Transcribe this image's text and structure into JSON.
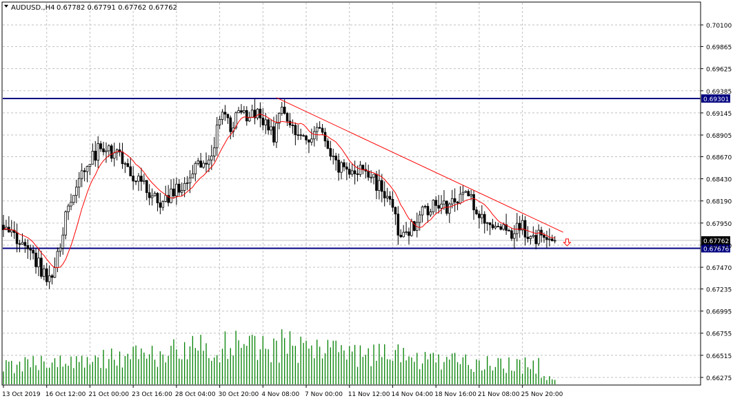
{
  "header": {
    "symbol": "AUDUSD.,H4",
    "ohlc": "0.67782 0.67791 0.67762 0.67762",
    "menu_icon": "triangle-down-icon"
  },
  "colors": {
    "background": "#ffffff",
    "grid": "#c0c0c0",
    "frame": "#000000",
    "candle": "#000000",
    "moving_average": "#ff0000",
    "trendline": "#ff0000",
    "support_resistance": "#000080",
    "volume": "#008000",
    "arrow": "#ff0000",
    "price_label_bg": "#000080",
    "current_price_bg": "#000000"
  },
  "chart_data": {
    "type": "candlestick",
    "symbol": "AUDUSD.",
    "timeframe": "H4",
    "grid": true,
    "ylim": [
      0.662,
      0.7034
    ],
    "y_ticks": [
      "0.70100",
      "0.69865",
      "0.69625",
      "0.69385",
      "0.69145",
      "0.68905",
      "0.68670",
      "0.68430",
      "0.68190",
      "0.67950",
      "0.67710",
      "0.67470",
      "0.67235",
      "0.66995",
      "0.66755",
      "0.66515",
      "0.66275"
    ],
    "x_ticks": [
      "13 Oct 2019",
      "16 Oct 12:00",
      "21 Oct 00:00",
      "23 Oct 16:00",
      "28 Oct 04:00",
      "30 Oct 20:00",
      "4 Nov 08:00",
      "7 Nov 00:00",
      "11 Nov 12:00",
      "14 Nov 04:00",
      "18 Nov 16:00",
      "21 Nov 08:00",
      "25 Nov 20:00"
    ],
    "current_price_label": "0.67762",
    "horizontal_lines": [
      {
        "price": 0.69301,
        "label": "0.69301"
      },
      {
        "price": 0.67676,
        "label": "0.67676"
      }
    ],
    "trendline": {
      "from": {
        "bar": 101,
        "price": 0.6931
      },
      "to": {
        "bar": 204,
        "price": 0.6785
      }
    },
    "ma_period": 10,
    "signal_arrow": {
      "bar": 207,
      "price": 0.6774,
      "direction": "down"
    },
    "close_anchors": [
      [
        0,
        0.679
      ],
      [
        8,
        0.6774
      ],
      [
        13,
        0.675
      ],
      [
        17,
        0.673
      ],
      [
        20,
        0.6762
      ],
      [
        23,
        0.68
      ],
      [
        27,
        0.683
      ],
      [
        32,
        0.6865
      ],
      [
        36,
        0.6877
      ],
      [
        42,
        0.687
      ],
      [
        47,
        0.685
      ],
      [
        52,
        0.684
      ],
      [
        57,
        0.6815
      ],
      [
        62,
        0.6825
      ],
      [
        67,
        0.684
      ],
      [
        72,
        0.686
      ],
      [
        77,
        0.687
      ],
      [
        81,
        0.692
      ],
      [
        84,
        0.69
      ],
      [
        87,
        0.691
      ],
      [
        92,
        0.6915
      ],
      [
        97,
        0.6905
      ],
      [
        100,
        0.689
      ],
      [
        102,
        0.692
      ],
      [
        107,
        0.6895
      ],
      [
        112,
        0.688
      ],
      [
        116,
        0.6905
      ],
      [
        119,
        0.688
      ],
      [
        122,
        0.686
      ],
      [
        127,
        0.6855
      ],
      [
        132,
        0.685
      ],
      [
        137,
        0.684
      ],
      [
        140,
        0.6835
      ],
      [
        143,
        0.682
      ],
      [
        147,
        0.6775
      ],
      [
        150,
        0.6785
      ],
      [
        155,
        0.6805
      ],
      [
        160,
        0.6815
      ],
      [
        164,
        0.681
      ],
      [
        167,
        0.682
      ],
      [
        170,
        0.683
      ],
      [
        174,
        0.6815
      ],
      [
        177,
        0.68
      ],
      [
        182,
        0.679
      ],
      [
        187,
        0.6785
      ],
      [
        192,
        0.679
      ],
      [
        196,
        0.6775
      ],
      [
        200,
        0.6785
      ],
      [
        203,
        0.6779
      ],
      [
        204,
        0.6776
      ]
    ],
    "bars_total": 205,
    "volume_profile": "high activity late Oct to early Nov, tapering toward 25 Nov"
  }
}
